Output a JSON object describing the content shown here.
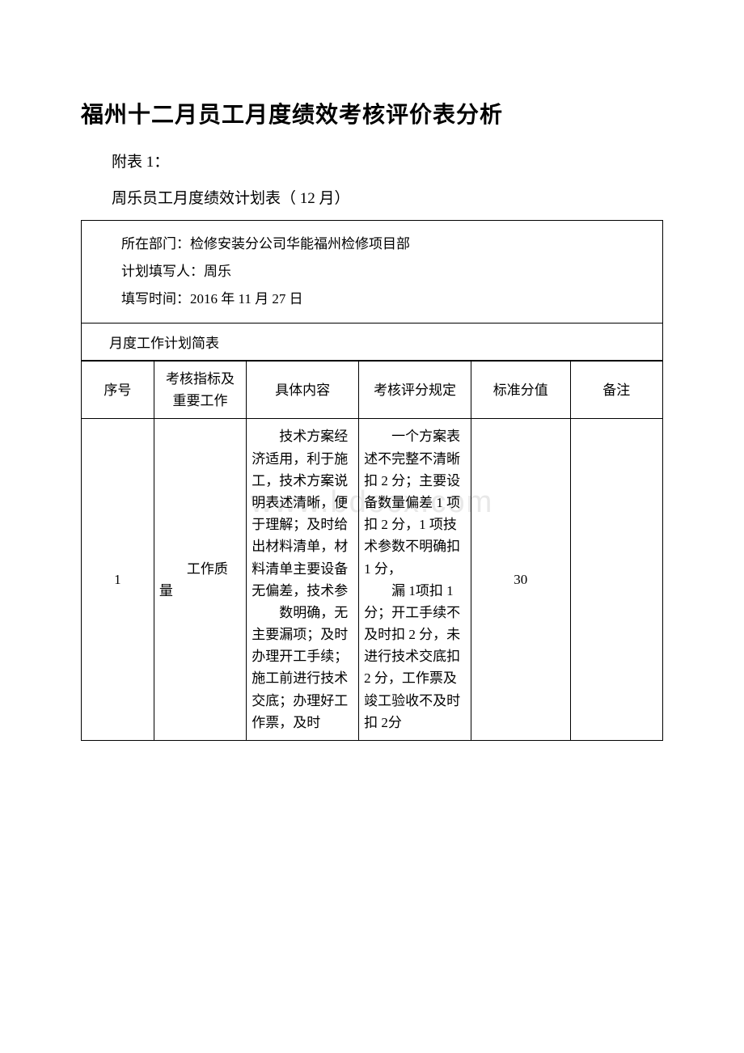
{
  "watermark_text": "www.bdocx.com",
  "title": "福州十二月员工月度绩效考核评价表分析",
  "subtitle": "附表 1：",
  "plan_title": "周乐员工月度绩效计划表（ 12 月）",
  "info": {
    "department_label": "所在部门：",
    "department_value": "检修安装分公司华能福州检修项目部",
    "filler_label": "计划填写人：",
    "filler_value": "周乐",
    "date_label": "填写时间：",
    "date_value": "2016 年 11 月 27 日"
  },
  "section_label": "月度工作计划简表",
  "headers": {
    "seq": "序号",
    "indicator": "考核指标及重要工作",
    "content": "具体内容",
    "rule": "考核评分规定",
    "score": "标准分值",
    "remark": "备注"
  },
  "rows": [
    {
      "seq": "1",
      "indicator": "　　工作质量",
      "content": "　　技术方案经济适用，利于施工，技术方案说明表述清晰，便于理解；及时给出材料清单，材料清单主要设备无偏差，技术参\n　　数明确，无主要漏项；及时办理开工手续；施工前进行技术交底；办理好工作票，及时",
      "rule": "　　一个方案表述不完整不清晰扣 2 分；主要设备数量偏差 1 项扣 2 分，1 项技术参数不明确扣 1 分，\n　　漏 1项扣 1 分；开工手续不及时扣 2 分，未进行技术交底扣2 分，工作票及竣工验收不及时扣 2分",
      "score": "30",
      "remark": ""
    }
  ]
}
